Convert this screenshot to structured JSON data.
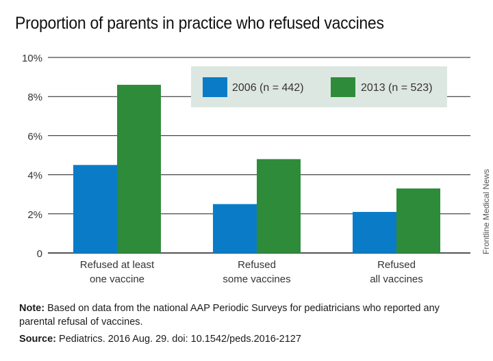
{
  "title": "Proportion of parents in practice who refused vaccines",
  "credit": "Frontline Medical News",
  "note": {
    "label": "Note:",
    "text": " Based on data from the national AAP Periodic Surveys for pediatricians who reported any parental refusal of vaccines."
  },
  "source": {
    "label": "Source:",
    "text": " Pediatrics. 2016 Aug. 29. doi: 10.1542/peds.2016-2127"
  },
  "colors": {
    "series_2006": "#0a7cc7",
    "series_2013": "#2e8b3a",
    "legend_bg": "#dde7e1",
    "grid": "#1a1a1a"
  },
  "chart_data": {
    "type": "bar",
    "categories": [
      [
        "Refused at least",
        "one vaccine"
      ],
      [
        "Refused",
        "some vaccines"
      ],
      [
        "Refused",
        "all vaccines"
      ]
    ],
    "series": [
      {
        "name": "2006 (n = 442)",
        "values": [
          4.5,
          2.5,
          2.1
        ]
      },
      {
        "name": "2013 (n = 523)",
        "values": [
          8.6,
          4.8,
          3.3
        ]
      }
    ],
    "y_ticks": [
      "0",
      "2%",
      "4%",
      "6%",
      "8%",
      "10%"
    ],
    "ylim": [
      0,
      10
    ],
    "grid": true,
    "legend_position": "top-right",
    "unit": "%"
  }
}
